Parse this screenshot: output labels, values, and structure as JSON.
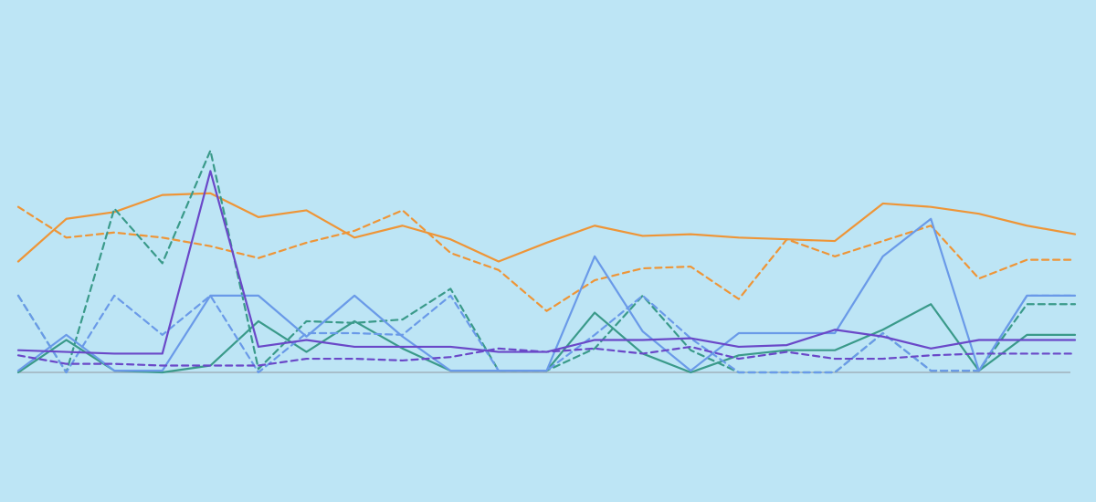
{
  "chart_data": {
    "type": "line",
    "title": "",
    "xlabel": "",
    "ylabel": "",
    "x": [
      1,
      2,
      3,
      4,
      5,
      6,
      7,
      8,
      9,
      10,
      11,
      12,
      13,
      14,
      15,
      16,
      17,
      18,
      19,
      20,
      21,
      22,
      23
    ],
    "ylim": [
      0,
      130
    ],
    "grid": false,
    "legend": "none",
    "background": "#bde5f5",
    "axis_color": "#9aa7b0",
    "series": [
      {
        "color": "#ee9537",
        "style": "solid",
        "values": [
          65,
          90,
          94,
          104,
          105,
          91,
          95,
          79,
          86,
          78,
          65,
          76,
          86,
          80,
          81,
          79,
          78,
          77,
          99,
          97,
          93,
          86,
          81
        ]
      },
      {
        "color": "#ee9537",
        "style": "dashed",
        "values": [
          97,
          79,
          82,
          79,
          74,
          67,
          76,
          83,
          95,
          70,
          60,
          36,
          54,
          61,
          62,
          43,
          78,
          68,
          77,
          86,
          55,
          66,
          66
        ]
      },
      {
        "color": "#3a9a8a",
        "style": "solid",
        "values": [
          0,
          19,
          1,
          0,
          4,
          30,
          12,
          30,
          14,
          1,
          1,
          1,
          35,
          11,
          0,
          10,
          13,
          13,
          25,
          40,
          1,
          22,
          22
        ]
      },
      {
        "color": "#3a9a8a",
        "style": "dashed",
        "values": [
          45,
          0,
          96,
          64,
          130,
          2,
          30,
          29,
          31,
          49,
          1,
          1,
          14,
          45,
          13,
          0,
          0,
          0,
          23,
          1,
          1,
          40,
          40
        ]
      },
      {
        "color": "#6a9ae8",
        "style": "solid",
        "values": [
          1,
          22,
          1,
          1,
          45,
          45,
          21,
          45,
          21,
          1,
          1,
          1,
          68,
          24,
          1,
          23,
          23,
          23,
          68,
          90,
          1,
          45,
          45
        ]
      },
      {
        "color": "#6a9ae8",
        "style": "dashed",
        "values": [
          45,
          0,
          45,
          22,
          45,
          0,
          23,
          23,
          22,
          45,
          1,
          1,
          22,
          45,
          20,
          0,
          0,
          0,
          23,
          1,
          1,
          45,
          45
        ]
      },
      {
        "color": "#6a48c8",
        "style": "solid",
        "values": [
          13,
          12,
          11,
          11,
          118,
          15,
          19,
          15,
          15,
          15,
          12,
          12,
          19,
          19,
          20,
          15,
          16,
          25,
          21,
          14,
          19,
          19,
          19
        ]
      },
      {
        "color": "#6a48c8",
        "style": "dashed",
        "values": [
          10,
          5,
          5,
          4,
          4,
          4,
          8,
          8,
          7,
          9,
          14,
          12,
          14,
          11,
          15,
          8,
          12,
          8,
          8,
          10,
          11,
          11,
          11
        ]
      }
    ]
  }
}
